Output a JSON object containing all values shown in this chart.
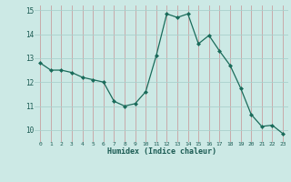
{
  "x": [
    0,
    1,
    2,
    3,
    4,
    5,
    6,
    7,
    8,
    9,
    10,
    11,
    12,
    13,
    14,
    15,
    16,
    17,
    18,
    19,
    20,
    21,
    22,
    23
  ],
  "y": [
    12.8,
    12.5,
    12.5,
    12.4,
    12.2,
    12.1,
    12.0,
    11.2,
    11.0,
    11.1,
    11.6,
    13.1,
    14.85,
    14.7,
    14.85,
    13.6,
    13.95,
    13.3,
    12.7,
    11.75,
    10.65,
    10.15,
    10.2,
    9.85
  ],
  "xlim": [
    -0.5,
    23.5
  ],
  "ylim": [
    9.5,
    15.2
  ],
  "yticks": [
    10,
    11,
    12,
    13,
    14,
    15
  ],
  "xticks": [
    0,
    1,
    2,
    3,
    4,
    5,
    6,
    7,
    8,
    9,
    10,
    11,
    12,
    13,
    14,
    15,
    16,
    17,
    18,
    19,
    20,
    21,
    22,
    23
  ],
  "xlabel": "Humidex (Indice chaleur)",
  "line_color": "#1a6b5a",
  "marker": "D",
  "marker_size": 2.0,
  "bg_color": "#cce9e5",
  "grid_color": "#aad0cc",
  "grid_color_v": "#c0c0c0"
}
